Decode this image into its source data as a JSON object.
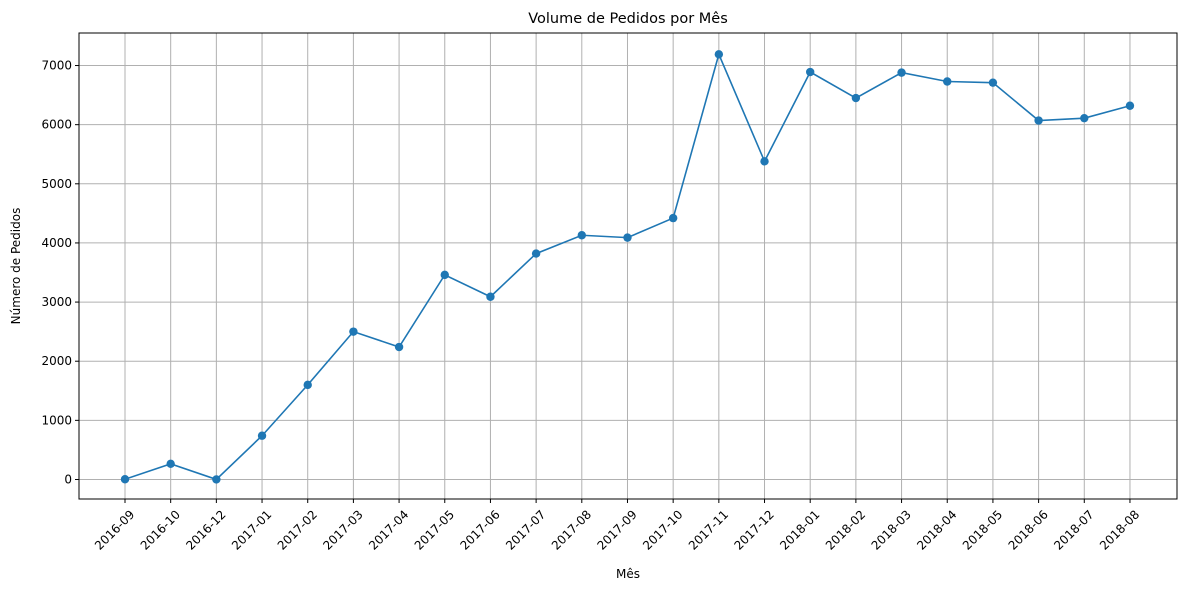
{
  "chart_data": {
    "type": "line",
    "title": "Volume de Pedidos por Mês",
    "xlabel": "Mês",
    "ylabel": "Número de Pedidos",
    "categories": [
      "2016-09",
      "2016-10",
      "2016-12",
      "2017-01",
      "2017-02",
      "2017-03",
      "2017-04",
      "2017-05",
      "2017-06",
      "2017-07",
      "2017-08",
      "2017-09",
      "2017-10",
      "2017-11",
      "2017-12",
      "2018-01",
      "2018-02",
      "2018-03",
      "2018-04",
      "2018-05",
      "2018-06",
      "2018-07",
      "2018-08"
    ],
    "series": [
      {
        "color": "#1f77b4",
        "marker": "circle",
        "values": [
          4,
          265,
          1,
          740,
          1600,
          2500,
          2240,
          3460,
          3090,
          3820,
          4130,
          4090,
          4420,
          7190,
          5380,
          6890,
          6450,
          6880,
          6730,
          6710,
          6070,
          6110,
          6320
        ]
      }
    ],
    "ylim": [
      -330,
      7550
    ],
    "yticks": [
      0,
      1000,
      2000,
      3000,
      4000,
      5000,
      6000,
      7000
    ],
    "grid": true,
    "legend": "none"
  }
}
